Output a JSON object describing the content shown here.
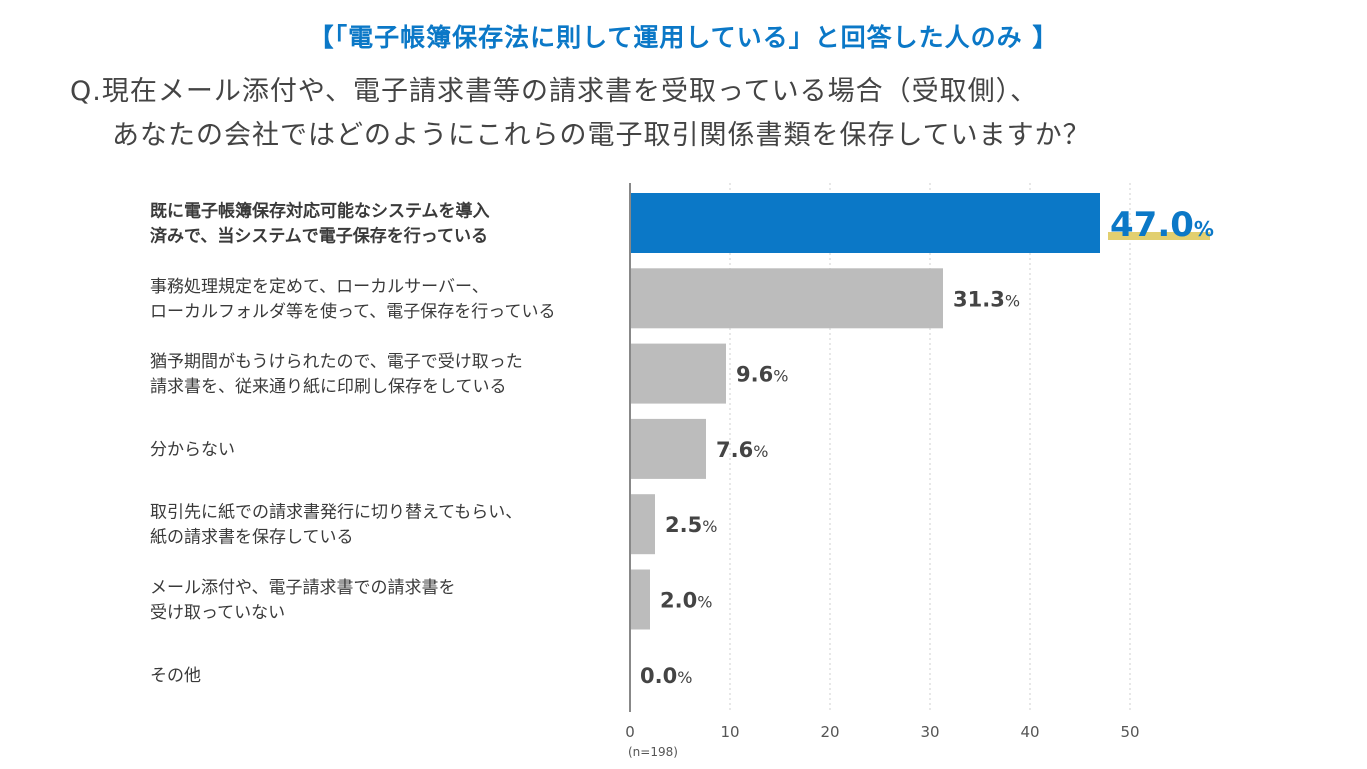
{
  "header": {
    "subtitle": "【「電子帳簿保存法に則して運用している」と回答した人のみ 】",
    "question_line1": "Q.現在メール添付や、電子請求書等の請求書を受取っている場合（受取側）、",
    "question_line2": "あなたの会社ではどのようにこれらの電子取引関係書類を保存していますか？"
  },
  "chart_data": {
    "type": "bar",
    "orientation": "horizontal",
    "categories": [
      [
        "既に電子帳簿保存対応可能なシステムを導入",
        "済みで、当システムで電子保存を行っている"
      ],
      [
        "事務処理規定を定めて、ローカルサーバー、",
        "ローカルフォルダ等を使って、電子保存を行っている"
      ],
      [
        "猶予期間がもうけられたので、電子で受け取った",
        "請求書を、従来通り紙に印刷し保存をしている"
      ],
      [
        "分からない"
      ],
      [
        "取引先に紙での請求書発行に切り替えてもらい、",
        "紙の請求書を保存している"
      ],
      [
        "メール添付や、電子請求書での請求書を",
        "受け取っていない"
      ],
      [
        "その他"
      ]
    ],
    "values": [
      47.0,
      31.3,
      9.6,
      7.6,
      2.5,
      2.0,
      0.0
    ],
    "value_labels": [
      "47.0",
      "31.3",
      "9.6",
      "7.6",
      "2.5",
      "2.0",
      "0.0"
    ],
    "unit": "%",
    "xlim": [
      0,
      50
    ],
    "xticks": [
      0,
      10,
      20,
      30,
      40,
      50
    ],
    "note": "(n=198)",
    "grid": true,
    "colors": {
      "highlight": "#0b78c7",
      "bar": "#bcbcbc",
      "highlight_underline": "#e2cf6f",
      "grid": "#cfcfcf",
      "axis": "#888888",
      "label": "#3a3a3a"
    }
  }
}
